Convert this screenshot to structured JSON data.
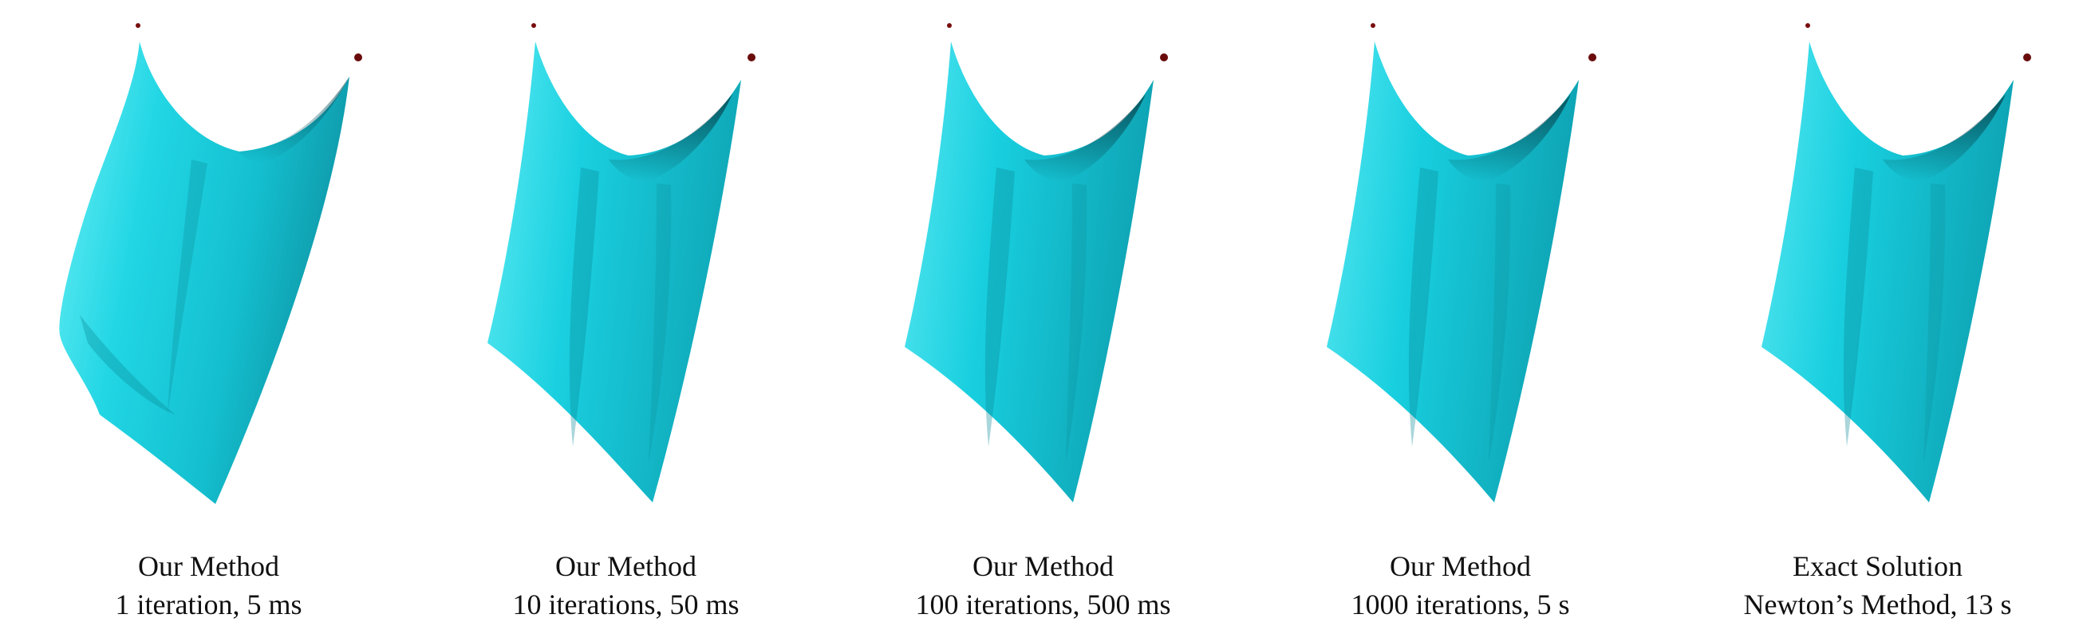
{
  "figure": {
    "colors": {
      "cloth_base": "#18d4e2",
      "cloth_highlight": "#7ff3f8",
      "cloth_shadow": "#0a6f7d",
      "pin": "#7a0d0d",
      "caption_text": "#111111"
    },
    "panels": [
      {
        "method": "Our Method",
        "detail": "1 iteration, 5 ms"
      },
      {
        "method": "Our Method",
        "detail": "10 iterations, 50 ms"
      },
      {
        "method": "Our Method",
        "detail": "100 iterations, 500 ms"
      },
      {
        "method": "Our Method",
        "detail": "1000 iterations, 5 s"
      },
      {
        "method": "Exact Solution",
        "detail": "Newton’s Method, 13 s"
      }
    ]
  }
}
